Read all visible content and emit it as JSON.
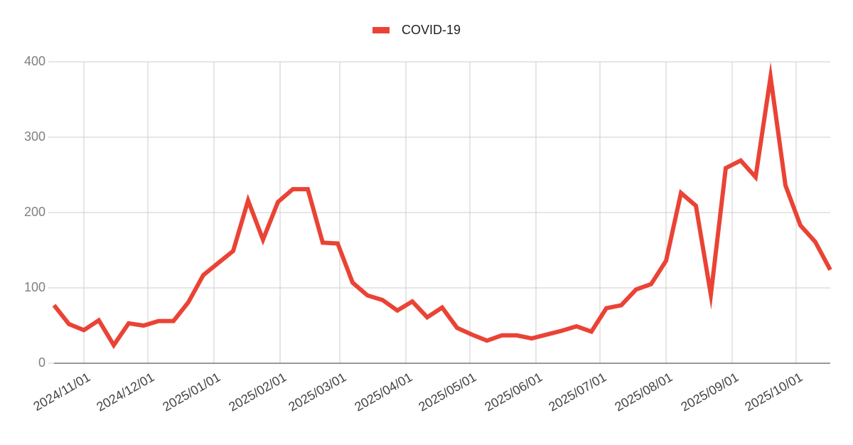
{
  "chart_data": {
    "type": "line",
    "x": [
      "2024/10/18",
      "2024/10/25",
      "2024/11/01",
      "2024/11/08",
      "2024/11/15",
      "2024/11/22",
      "2024/11/29",
      "2024/12/06",
      "2024/12/13",
      "2024/12/20",
      "2024/12/27",
      "2025/01/03",
      "2025/01/10",
      "2025/01/17",
      "2025/01/24",
      "2025/01/31",
      "2025/02/07",
      "2025/02/14",
      "2025/02/21",
      "2025/02/28",
      "2025/03/07",
      "2025/03/14",
      "2025/03/21",
      "2025/03/28",
      "2025/04/04",
      "2025/04/11",
      "2025/04/18",
      "2025/04/25",
      "2025/05/02",
      "2025/05/09",
      "2025/05/16",
      "2025/05/23",
      "2025/05/30",
      "2025/06/06",
      "2025/06/13",
      "2025/06/20",
      "2025/06/27",
      "2025/07/04",
      "2025/07/11",
      "2025/07/18",
      "2025/07/25",
      "2025/08/01",
      "2025/08/08",
      "2025/08/15",
      "2025/08/22",
      "2025/08/29",
      "2025/09/05",
      "2025/09/12",
      "2025/09/19",
      "2025/09/26",
      "2025/10/03",
      "2025/10/10",
      "2025/10/17"
    ],
    "series": [
      {
        "name": "COVID-19",
        "color": "#ea4335",
        "values": [
          77,
          52,
          44,
          57,
          24,
          53,
          50,
          56,
          56,
          81,
          117,
          133,
          149,
          216,
          164,
          214,
          231,
          231,
          160,
          159,
          107,
          90,
          84,
          70,
          82,
          61,
          74,
          47,
          38,
          30,
          37,
          37,
          33,
          38,
          43,
          49,
          42,
          73,
          77,
          98,
          105,
          136,
          226,
          209,
          91,
          259,
          269,
          247,
          380,
          236,
          183,
          161,
          124
        ]
      }
    ],
    "xlim": [
      "2024/10/18",
      "2025/10/17"
    ],
    "xticks": [
      "2024/11/01",
      "2024/12/01",
      "2025/01/01",
      "2025/02/01",
      "2025/03/01",
      "2025/04/01",
      "2025/05/01",
      "2025/06/01",
      "2025/07/01",
      "2025/08/01",
      "2025/09/01",
      "2025/10/01"
    ],
    "ylim": [
      0,
      400
    ],
    "yticks": [
      0,
      100,
      200,
      300,
      400
    ],
    "grid": true,
    "legend": "top"
  }
}
